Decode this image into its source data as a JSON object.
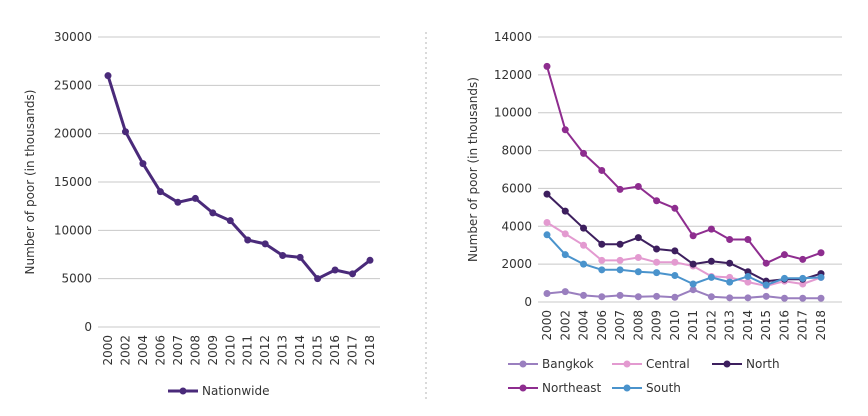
{
  "chart_data": [
    {
      "type": "line",
      "categories": [
        "2000",
        "2002",
        "2004",
        "2006",
        "2007",
        "2008",
        "2009",
        "2010",
        "2011",
        "2012",
        "2013",
        "2014",
        "2015",
        "2016",
        "2017",
        "2018"
      ],
      "ylabel": "Number of poor (in thousands)",
      "ylim": [
        0,
        30000
      ],
      "yticks": [
        0,
        5000,
        10000,
        15000,
        20000,
        25000,
        30000
      ],
      "ytick_labels": [
        "0",
        "5000",
        "10000",
        "15000",
        "20000",
        "25000",
        "30000"
      ],
      "grid": true,
      "legend_position": "bottom",
      "series": [
        {
          "name": "Nationwide",
          "color": "#4a2a7a",
          "values": [
            26000,
            20200,
            16900,
            14000,
            12900,
            13300,
            11800,
            11000,
            9000,
            8600,
            7400,
            7200,
            5000,
            5900,
            5500,
            6900
          ]
        }
      ]
    },
    {
      "type": "line",
      "categories": [
        "2000",
        "2002",
        "2004",
        "2006",
        "2007",
        "2008",
        "2009",
        "2010",
        "2011",
        "2012",
        "2013",
        "2014",
        "2015",
        "2016",
        "2017",
        "2018"
      ],
      "ylabel": "Number of poor (in thousands)",
      "ylim": [
        0,
        14000
      ],
      "yticks": [
        0,
        2000,
        4000,
        6000,
        8000,
        10000,
        12000,
        14000
      ],
      "ytick_labels": [
        "0",
        "2000",
        "4000",
        "6000",
        "8000",
        "10000",
        "12000",
        "14000"
      ],
      "grid": true,
      "legend_position": "bottom",
      "series": [
        {
          "name": "Bangkok",
          "color": "#9a7fbf",
          "values": [
            450,
            550,
            350,
            280,
            350,
            280,
            300,
            250,
            650,
            280,
            220,
            220,
            300,
            200,
            200,
            200
          ]
        },
        {
          "name": "Central",
          "color": "#e39ad0",
          "values": [
            4200,
            3600,
            3000,
            2200,
            2200,
            2350,
            2100,
            2100,
            1900,
            1350,
            1300,
            1050,
            850,
            1100,
            950,
            1300
          ]
        },
        {
          "name": "North",
          "color": "#3d1f5e",
          "values": [
            5700,
            4800,
            3900,
            3050,
            3050,
            3400,
            2800,
            2700,
            2000,
            2150,
            2050,
            1600,
            1100,
            1200,
            1200,
            1500
          ]
        },
        {
          "name": "Northeast",
          "color": "#8e2d8f",
          "values": [
            12450,
            9100,
            7850,
            6950,
            5950,
            6100,
            5350,
            4950,
            3500,
            3850,
            3300,
            3300,
            2050,
            2500,
            2250,
            2600
          ]
        },
        {
          "name": "South",
          "color": "#4a93cc",
          "values": [
            3550,
            2500,
            2000,
            1700,
            1700,
            1600,
            1550,
            1400,
            950,
            1300,
            1050,
            1350,
            900,
            1250,
            1250,
            1300
          ]
        }
      ]
    }
  ]
}
